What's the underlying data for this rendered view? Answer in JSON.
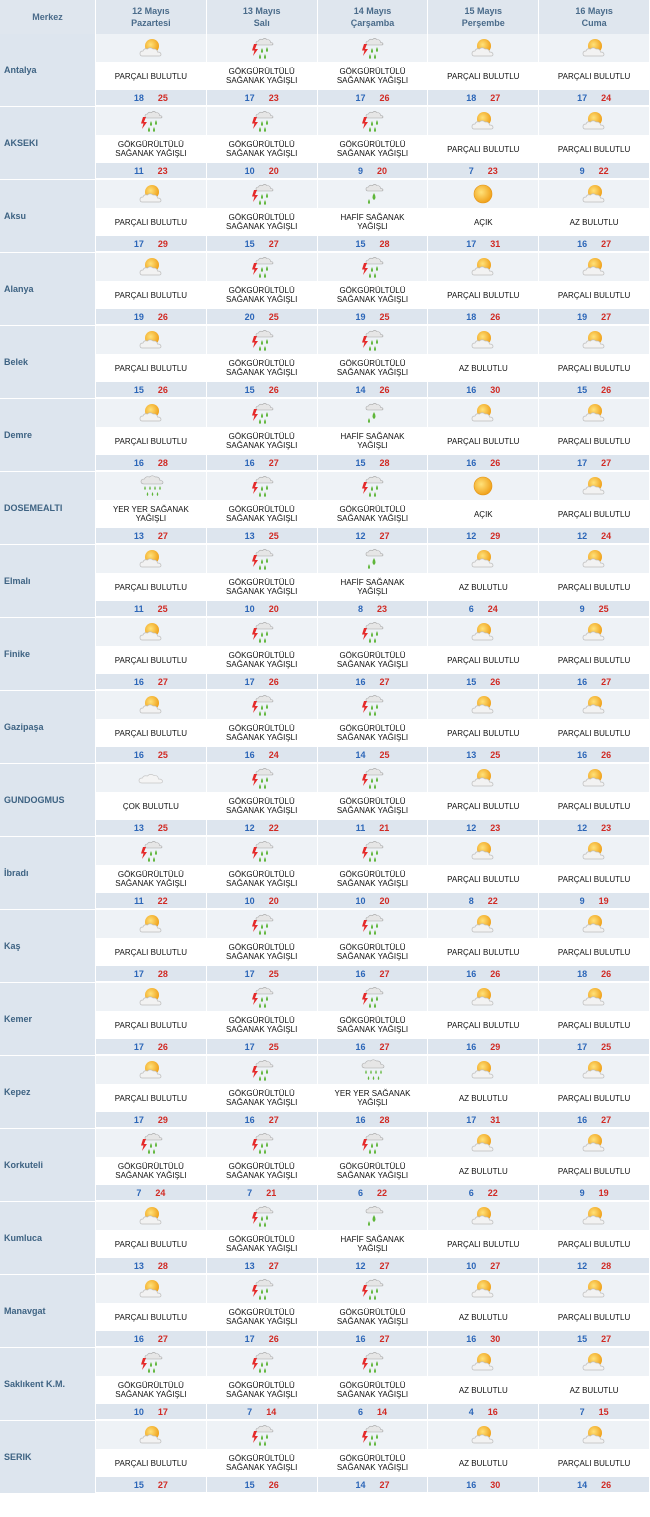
{
  "header": {
    "merkez": "Merkez",
    "days": [
      {
        "date": "12 Mayıs",
        "day": "Pazartesi"
      },
      {
        "date": "13 Mayıs",
        "day": "Salı"
      },
      {
        "date": "14 Mayıs",
        "day": "Çarşamba"
      },
      {
        "date": "15 Mayıs",
        "day": "Perşembe"
      },
      {
        "date": "16 Mayıs",
        "day": "Cuma"
      }
    ]
  },
  "colors": {
    "min": "#2c66b8",
    "max": "#d12a24",
    "header_bg": "#dfe6ee",
    "row_bg": "#eef2f6"
  },
  "rows": [
    {
      "city": "Antalya",
      "days": [
        {
          "icon": "partly-cloudy-icon",
          "desc": "PARÇALI BULUTLU",
          "min": "18",
          "max": "25"
        },
        {
          "icon": "thunderstorm-shower-icon",
          "desc": "GÖKGÜRÜLTÜLÜ SAĞANAK YAĞIŞLI",
          "min": "17",
          "max": "23"
        },
        {
          "icon": "thunderstorm-shower-icon",
          "desc": "GÖKGÜRÜLTÜLÜ SAĞANAK YAĞIŞLI",
          "min": "17",
          "max": "26"
        },
        {
          "icon": "partly-cloudy-icon",
          "desc": "PARÇALI BULUTLU",
          "min": "18",
          "max": "27"
        },
        {
          "icon": "partly-cloudy-icon",
          "desc": "PARÇALI BULUTLU",
          "min": "17",
          "max": "24"
        }
      ]
    },
    {
      "city": "AKSEKI",
      "days": [
        {
          "icon": "thunderstorm-shower-icon",
          "desc": "GÖKGÜRÜLTÜLÜ SAĞANAK YAĞIŞLI",
          "min": "11",
          "max": "23"
        },
        {
          "icon": "thunderstorm-shower-icon",
          "desc": "GÖKGÜRÜLTÜLÜ SAĞANAK YAĞIŞLI",
          "min": "10",
          "max": "20"
        },
        {
          "icon": "thunderstorm-shower-icon",
          "desc": "GÖKGÜRÜLTÜLÜ SAĞANAK YAĞIŞLI",
          "min": "9",
          "max": "20"
        },
        {
          "icon": "partly-cloudy-icon",
          "desc": "PARÇALI BULUTLU",
          "min": "7",
          "max": "23"
        },
        {
          "icon": "partly-cloudy-icon",
          "desc": "PARÇALI BULUTLU",
          "min": "9",
          "max": "22"
        }
      ]
    },
    {
      "city": "Aksu",
      "days": [
        {
          "icon": "partly-cloudy-icon",
          "desc": "PARÇALI BULUTLU",
          "min": "17",
          "max": "29"
        },
        {
          "icon": "thunderstorm-shower-icon",
          "desc": "GÖKGÜRÜLTÜLÜ SAĞANAK YAĞIŞLI",
          "min": "15",
          "max": "27"
        },
        {
          "icon": "light-shower-icon",
          "desc": "HAFİF SAĞANAK YAĞIŞLI",
          "min": "15",
          "max": "28"
        },
        {
          "icon": "sunny-icon",
          "desc": "AÇIK",
          "min": "17",
          "max": "31"
        },
        {
          "icon": "partly-cloudy-icon",
          "desc": "AZ BULUTLU",
          "min": "16",
          "max": "27"
        }
      ]
    },
    {
      "city": "Alanya",
      "days": [
        {
          "icon": "partly-cloudy-icon",
          "desc": "PARÇALI BULUTLU",
          "min": "19",
          "max": "26"
        },
        {
          "icon": "thunderstorm-shower-icon",
          "desc": "GÖKGÜRÜLTÜLÜ SAĞANAK YAĞIŞLI",
          "min": "20",
          "max": "25"
        },
        {
          "icon": "thunderstorm-shower-icon",
          "desc": "GÖKGÜRÜLTÜLÜ SAĞANAK YAĞIŞLI",
          "min": "19",
          "max": "25"
        },
        {
          "icon": "partly-cloudy-icon",
          "desc": "PARÇALI BULUTLU",
          "min": "18",
          "max": "26"
        },
        {
          "icon": "partly-cloudy-icon",
          "desc": "PARÇALI BULUTLU",
          "min": "19",
          "max": "27"
        }
      ]
    },
    {
      "city": "Belek",
      "days": [
        {
          "icon": "partly-cloudy-icon",
          "desc": "PARÇALI BULUTLU",
          "min": "15",
          "max": "26"
        },
        {
          "icon": "thunderstorm-shower-icon",
          "desc": "GÖKGÜRÜLTÜLÜ SAĞANAK YAĞIŞLI",
          "min": "15",
          "max": "26"
        },
        {
          "icon": "thunderstorm-shower-icon",
          "desc": "GÖKGÜRÜLTÜLÜ SAĞANAK YAĞIŞLI",
          "min": "14",
          "max": "26"
        },
        {
          "icon": "partly-cloudy-icon",
          "desc": "AZ BULUTLU",
          "min": "16",
          "max": "30"
        },
        {
          "icon": "partly-cloudy-icon",
          "desc": "PARÇALI BULUTLU",
          "min": "15",
          "max": "26"
        }
      ]
    },
    {
      "city": "Demre",
      "days": [
        {
          "icon": "partly-cloudy-icon",
          "desc": "PARÇALI BULUTLU",
          "min": "16",
          "max": "28"
        },
        {
          "icon": "thunderstorm-shower-icon",
          "desc": "GÖKGÜRÜLTÜLÜ SAĞANAK YAĞIŞLI",
          "min": "16",
          "max": "27"
        },
        {
          "icon": "light-shower-icon",
          "desc": "HAFİF SAĞANAK YAĞIŞLI",
          "min": "15",
          "max": "28"
        },
        {
          "icon": "partly-cloudy-icon",
          "desc": "PARÇALI BULUTLU",
          "min": "16",
          "max": "26"
        },
        {
          "icon": "partly-cloudy-icon",
          "desc": "PARÇALI BULUTLU",
          "min": "17",
          "max": "27"
        }
      ]
    },
    {
      "city": "DOSEMEALTI",
      "days": [
        {
          "icon": "scattered-shower-icon",
          "desc": "YER YER SAĞANAK YAĞIŞLI",
          "min": "13",
          "max": "27"
        },
        {
          "icon": "thunderstorm-shower-icon",
          "desc": "GÖKGÜRÜLTÜLÜ SAĞANAK YAĞIŞLI",
          "min": "13",
          "max": "25"
        },
        {
          "icon": "thunderstorm-shower-icon",
          "desc": "GÖKGÜRÜLTÜLÜ SAĞANAK YAĞIŞLI",
          "min": "12",
          "max": "27"
        },
        {
          "icon": "sunny-icon",
          "desc": "AÇIK",
          "min": "12",
          "max": "29"
        },
        {
          "icon": "partly-cloudy-icon",
          "desc": "PARÇALI BULUTLU",
          "min": "12",
          "max": "24"
        }
      ]
    },
    {
      "city": "Elmalı",
      "days": [
        {
          "icon": "partly-cloudy-icon",
          "desc": "PARÇALI BULUTLU",
          "min": "11",
          "max": "25"
        },
        {
          "icon": "thunderstorm-shower-icon",
          "desc": "GÖKGÜRÜLTÜLÜ SAĞANAK YAĞIŞLI",
          "min": "10",
          "max": "20"
        },
        {
          "icon": "light-shower-icon",
          "desc": "HAFİF SAĞANAK YAĞIŞLI",
          "min": "8",
          "max": "23"
        },
        {
          "icon": "partly-cloudy-icon",
          "desc": "AZ BULUTLU",
          "min": "6",
          "max": "24"
        },
        {
          "icon": "partly-cloudy-icon",
          "desc": "PARÇALI BULUTLU",
          "min": "9",
          "max": "25"
        }
      ]
    },
    {
      "city": "Finike",
      "days": [
        {
          "icon": "partly-cloudy-icon",
          "desc": "PARÇALI BULUTLU",
          "min": "16",
          "max": "27"
        },
        {
          "icon": "thunderstorm-shower-icon",
          "desc": "GÖKGÜRÜLTÜLÜ SAĞANAK YAĞIŞLI",
          "min": "17",
          "max": "26"
        },
        {
          "icon": "thunderstorm-shower-icon",
          "desc": "GÖKGÜRÜLTÜLÜ SAĞANAK YAĞIŞLI",
          "min": "16",
          "max": "27"
        },
        {
          "icon": "partly-cloudy-icon",
          "desc": "PARÇALI BULUTLU",
          "min": "15",
          "max": "26"
        },
        {
          "icon": "partly-cloudy-icon",
          "desc": "PARÇALI BULUTLU",
          "min": "16",
          "max": "27"
        }
      ]
    },
    {
      "city": "Gazipaşa",
      "days": [
        {
          "icon": "partly-cloudy-icon",
          "desc": "PARÇALI BULUTLU",
          "min": "16",
          "max": "25"
        },
        {
          "icon": "thunderstorm-shower-icon",
          "desc": "GÖKGÜRÜLTÜLÜ SAĞANAK YAĞIŞLI",
          "min": "16",
          "max": "24"
        },
        {
          "icon": "thunderstorm-shower-icon",
          "desc": "GÖKGÜRÜLTÜLÜ SAĞANAK YAĞIŞLI",
          "min": "14",
          "max": "25"
        },
        {
          "icon": "partly-cloudy-icon",
          "desc": "PARÇALI BULUTLU",
          "min": "13",
          "max": "25"
        },
        {
          "icon": "partly-cloudy-icon",
          "desc": "PARÇALI BULUTLU",
          "min": "16",
          "max": "26"
        }
      ]
    },
    {
      "city": "GUNDOGMUS",
      "days": [
        {
          "icon": "cloudy-icon",
          "desc": "ÇOK BULUTLU",
          "min": "13",
          "max": "25"
        },
        {
          "icon": "thunderstorm-shower-icon",
          "desc": "GÖKGÜRÜLTÜLÜ SAĞANAK YAĞIŞLI",
          "min": "12",
          "max": "22"
        },
        {
          "icon": "thunderstorm-shower-icon",
          "desc": "GÖKGÜRÜLTÜLÜ SAĞANAK YAĞIŞLI",
          "min": "11",
          "max": "21"
        },
        {
          "icon": "partly-cloudy-icon",
          "desc": "PARÇALI BULUTLU",
          "min": "12",
          "max": "23"
        },
        {
          "icon": "partly-cloudy-icon",
          "desc": "PARÇALI BULUTLU",
          "min": "12",
          "max": "23"
        }
      ]
    },
    {
      "city": "İbradı",
      "days": [
        {
          "icon": "thunderstorm-shower-icon",
          "desc": "GÖKGÜRÜLTÜLÜ SAĞANAK YAĞIŞLI",
          "min": "11",
          "max": "22"
        },
        {
          "icon": "thunderstorm-shower-icon",
          "desc": "GÖKGÜRÜLTÜLÜ SAĞANAK YAĞIŞLI",
          "min": "10",
          "max": "20"
        },
        {
          "icon": "thunderstorm-shower-icon",
          "desc": "GÖKGÜRÜLTÜLÜ SAĞANAK YAĞIŞLI",
          "min": "10",
          "max": "20"
        },
        {
          "icon": "partly-cloudy-icon",
          "desc": "PARÇALI BULUTLU",
          "min": "8",
          "max": "22"
        },
        {
          "icon": "partly-cloudy-icon",
          "desc": "PARÇALI BULUTLU",
          "min": "9",
          "max": "19"
        }
      ]
    },
    {
      "city": "Kaş",
      "days": [
        {
          "icon": "partly-cloudy-icon",
          "desc": "PARÇALI BULUTLU",
          "min": "17",
          "max": "28"
        },
        {
          "icon": "thunderstorm-shower-icon",
          "desc": "GÖKGÜRÜLTÜLÜ SAĞANAK YAĞIŞLI",
          "min": "17",
          "max": "25"
        },
        {
          "icon": "thunderstorm-shower-icon",
          "desc": "GÖKGÜRÜLTÜLÜ SAĞANAK YAĞIŞLI",
          "min": "16",
          "max": "27"
        },
        {
          "icon": "partly-cloudy-icon",
          "desc": "PARÇALI BULUTLU",
          "min": "16",
          "max": "26"
        },
        {
          "icon": "partly-cloudy-icon",
          "desc": "PARÇALI BULUTLU",
          "min": "18",
          "max": "26"
        }
      ]
    },
    {
      "city": "Kemer",
      "days": [
        {
          "icon": "partly-cloudy-icon",
          "desc": "PARÇALI BULUTLU",
          "min": "17",
          "max": "26"
        },
        {
          "icon": "thunderstorm-shower-icon",
          "desc": "GÖKGÜRÜLTÜLÜ SAĞANAK YAĞIŞLI",
          "min": "17",
          "max": "25"
        },
        {
          "icon": "thunderstorm-shower-icon",
          "desc": "GÖKGÜRÜLTÜLÜ SAĞANAK YAĞIŞLI",
          "min": "16",
          "max": "27"
        },
        {
          "icon": "partly-cloudy-icon",
          "desc": "PARÇALI BULUTLU",
          "min": "16",
          "max": "29"
        },
        {
          "icon": "partly-cloudy-icon",
          "desc": "PARÇALI BULUTLU",
          "min": "17",
          "max": "25"
        }
      ]
    },
    {
      "city": "Kepez",
      "days": [
        {
          "icon": "partly-cloudy-icon",
          "desc": "PARÇALI BULUTLU",
          "min": "17",
          "max": "29"
        },
        {
          "icon": "thunderstorm-shower-icon",
          "desc": "GÖKGÜRÜLTÜLÜ SAĞANAK YAĞIŞLI",
          "min": "16",
          "max": "27"
        },
        {
          "icon": "scattered-shower-icon",
          "desc": "YER YER SAĞANAK YAĞIŞLI",
          "min": "16",
          "max": "28"
        },
        {
          "icon": "partly-cloudy-icon",
          "desc": "AZ BULUTLU",
          "min": "17",
          "max": "31"
        },
        {
          "icon": "partly-cloudy-icon",
          "desc": "PARÇALI BULUTLU",
          "min": "16",
          "max": "27"
        }
      ]
    },
    {
      "city": "Korkuteli",
      "days": [
        {
          "icon": "thunderstorm-shower-icon",
          "desc": "GÖKGÜRÜLTÜLÜ SAĞANAK YAĞIŞLI",
          "min": "7",
          "max": "24"
        },
        {
          "icon": "thunderstorm-shower-icon",
          "desc": "GÖKGÜRÜLTÜLÜ SAĞANAK YAĞIŞLI",
          "min": "7",
          "max": "21"
        },
        {
          "icon": "thunderstorm-shower-icon",
          "desc": "GÖKGÜRÜLTÜLÜ SAĞANAK YAĞIŞLI",
          "min": "6",
          "max": "22"
        },
        {
          "icon": "partly-cloudy-icon",
          "desc": "AZ BULUTLU",
          "min": "6",
          "max": "22"
        },
        {
          "icon": "partly-cloudy-icon",
          "desc": "PARÇALI BULUTLU",
          "min": "9",
          "max": "19"
        }
      ]
    },
    {
      "city": "Kumluca",
      "days": [
        {
          "icon": "partly-cloudy-icon",
          "desc": "PARÇALI BULUTLU",
          "min": "13",
          "max": "28"
        },
        {
          "icon": "thunderstorm-shower-icon",
          "desc": "GÖKGÜRÜLTÜLÜ SAĞANAK YAĞIŞLI",
          "min": "13",
          "max": "27"
        },
        {
          "icon": "light-shower-icon",
          "desc": "HAFİF SAĞANAK YAĞIŞLI",
          "min": "12",
          "max": "27"
        },
        {
          "icon": "partly-cloudy-icon",
          "desc": "PARÇALI BULUTLU",
          "min": "10",
          "max": "27"
        },
        {
          "icon": "partly-cloudy-icon",
          "desc": "PARÇALI BULUTLU",
          "min": "12",
          "max": "28"
        }
      ]
    },
    {
      "city": "Manavgat",
      "days": [
        {
          "icon": "partly-cloudy-icon",
          "desc": "PARÇALI BULUTLU",
          "min": "16",
          "max": "27"
        },
        {
          "icon": "thunderstorm-shower-icon",
          "desc": "GÖKGÜRÜLTÜLÜ SAĞANAK YAĞIŞLI",
          "min": "17",
          "max": "26"
        },
        {
          "icon": "thunderstorm-shower-icon",
          "desc": "GÖKGÜRÜLTÜLÜ SAĞANAK YAĞIŞLI",
          "min": "16",
          "max": "27"
        },
        {
          "icon": "partly-cloudy-icon",
          "desc": "AZ BULUTLU",
          "min": "16",
          "max": "30"
        },
        {
          "icon": "partly-cloudy-icon",
          "desc": "PARÇALI BULUTLU",
          "min": "15",
          "max": "27"
        }
      ]
    },
    {
      "city": "Saklıkent K.M.",
      "days": [
        {
          "icon": "thunderstorm-shower-icon",
          "desc": "GÖKGÜRÜLTÜLÜ SAĞANAK YAĞIŞLI",
          "min": "10",
          "max": "17"
        },
        {
          "icon": "thunderstorm-shower-icon",
          "desc": "GÖKGÜRÜLTÜLÜ SAĞANAK YAĞIŞLI",
          "min": "7",
          "max": "14"
        },
        {
          "icon": "thunderstorm-shower-icon",
          "desc": "GÖKGÜRÜLTÜLÜ SAĞANAK YAĞIŞLI",
          "min": "6",
          "max": "14"
        },
        {
          "icon": "partly-cloudy-icon",
          "desc": "AZ BULUTLU",
          "min": "4",
          "max": "16"
        },
        {
          "icon": "partly-cloudy-icon",
          "desc": "AZ BULUTLU",
          "min": "7",
          "max": "15"
        }
      ]
    },
    {
      "city": "SERIK",
      "days": [
        {
          "icon": "partly-cloudy-icon",
          "desc": "PARÇALI BULUTLU",
          "min": "15",
          "max": "27"
        },
        {
          "icon": "thunderstorm-shower-icon",
          "desc": "GÖKGÜRÜLTÜLÜ SAĞANAK YAĞIŞLI",
          "min": "15",
          "max": "26"
        },
        {
          "icon": "thunderstorm-shower-icon",
          "desc": "GÖKGÜRÜLTÜLÜ SAĞANAK YAĞIŞLI",
          "min": "14",
          "max": "27"
        },
        {
          "icon": "partly-cloudy-icon",
          "desc": "AZ BULUTLU",
          "min": "16",
          "max": "30"
        },
        {
          "icon": "partly-cloudy-icon",
          "desc": "PARÇALI BULUTLU",
          "min": "14",
          "max": "26"
        }
      ]
    }
  ]
}
